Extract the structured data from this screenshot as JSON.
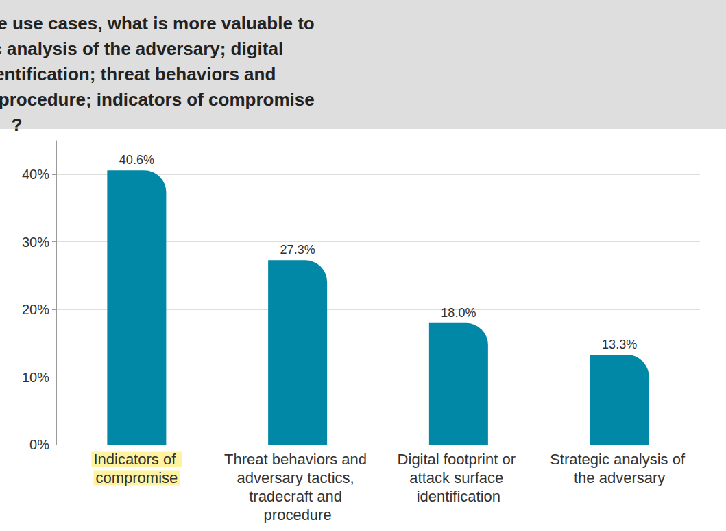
{
  "chart_data": {
    "type": "bar",
    "title": "For threat detection and response use cases, what is more valuable to you in ranked order: strategic analysis of the adversary; digital footprint or attack surface identification; threat behaviors and adversary tactics, tradecraft and procedure; indicators of compromise?",
    "categories": [
      "Indicators of compromise",
      "Threat behaviors and adversary tactics, tradecraft and procedure",
      "Digital footprint or attack surface identification",
      "Strategic analysis of the adversary"
    ],
    "values": [
      40.6,
      27.3,
      18.0,
      13.3
    ],
    "value_labels": [
      "40.6%",
      "27.3%",
      "18.0%",
      "13.3%"
    ],
    "color": "#0088a6",
    "ylim": [
      0,
      45
    ],
    "yticks": [
      {
        "value": 0,
        "label": "0%"
      },
      {
        "value": 10,
        "label": "10%"
      },
      {
        "value": 20,
        "label": "20%"
      },
      {
        "value": 30,
        "label": "30%"
      },
      {
        "value": 40,
        "label": "40%"
      }
    ],
    "grid": true,
    "data_labels": true
  }
}
